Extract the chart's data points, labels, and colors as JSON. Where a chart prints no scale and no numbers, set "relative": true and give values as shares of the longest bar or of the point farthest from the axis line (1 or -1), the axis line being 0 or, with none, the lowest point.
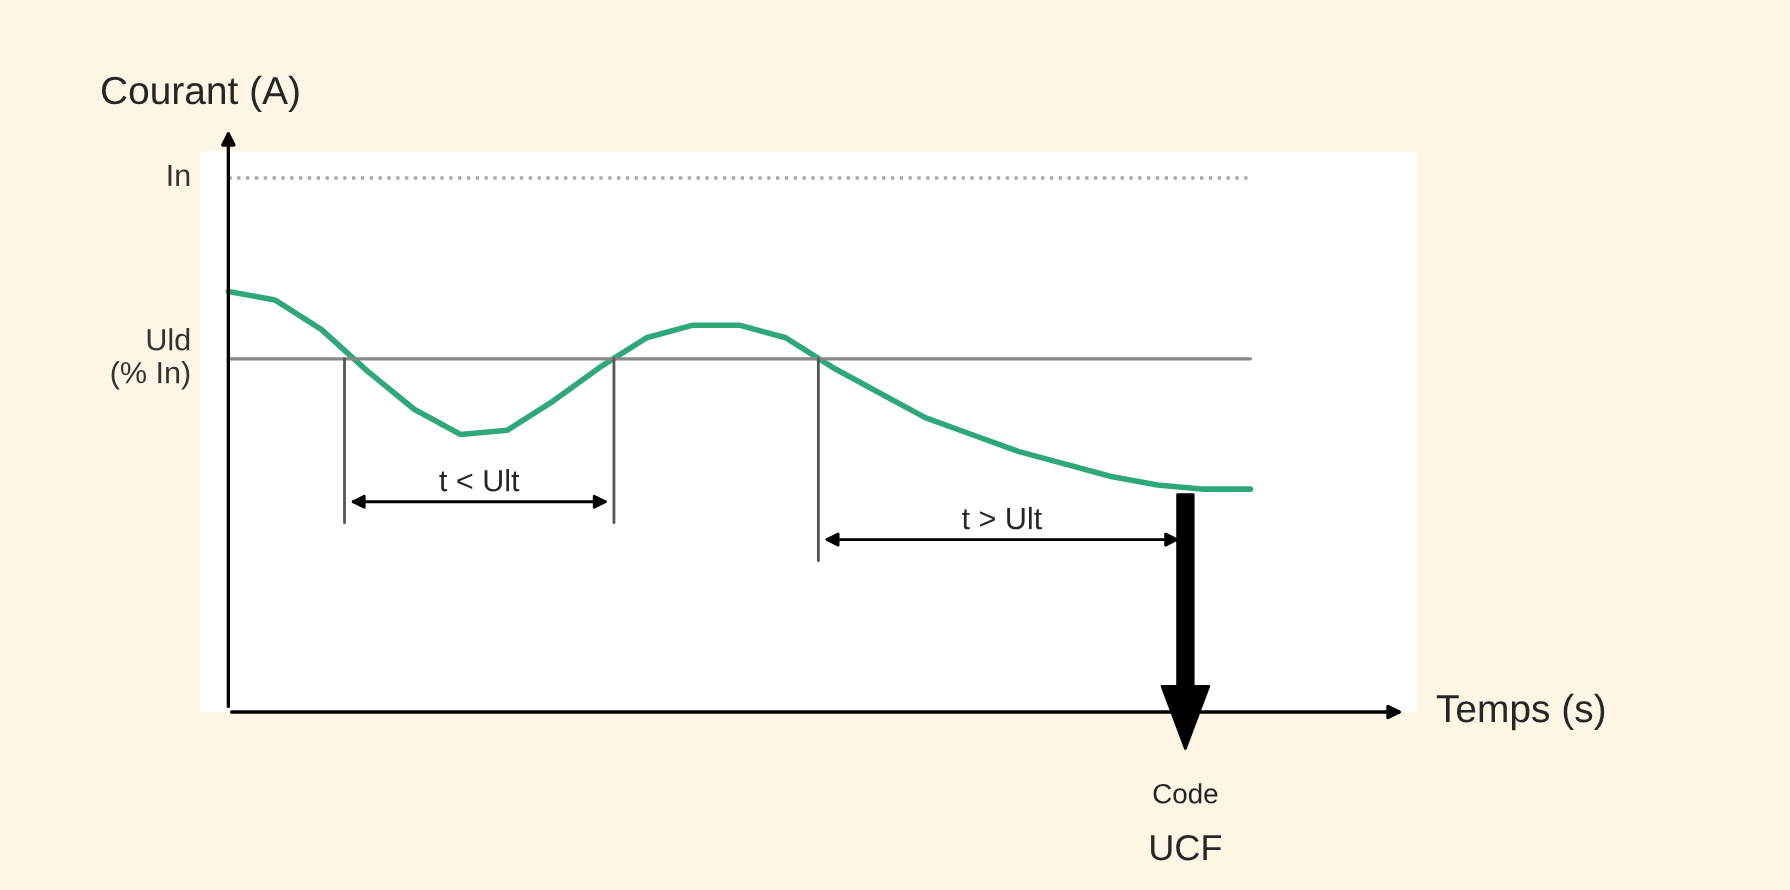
{
  "chart_data": {
    "type": "line",
    "relative": true,
    "ylabel": "Courant (A)",
    "xlabel": "Temps (s)",
    "categories": [
      null,
      null,
      null,
      null,
      null,
      null,
      null,
      null,
      null,
      null,
      null,
      null,
      null,
      null,
      null,
      null,
      null,
      null,
      null,
      null,
      null,
      null,
      null
    ],
    "series": [
      {
        "color": "#2ea878",
        "values": [
          1.0,
          0.98,
          0.91,
          0.81,
          0.72,
          0.66,
          0.67,
          0.74,
          0.82,
          0.89,
          0.92,
          0.92,
          0.89,
          0.82,
          0.76,
          0.7,
          0.66,
          0.62,
          0.59,
          0.56,
          0.54,
          0.53,
          0.53
        ]
      }
    ],
    "ref_lines": [
      {
        "axis": "y",
        "value": 1.27,
        "label": "In",
        "color": "#aaaaaa",
        "line_style": "dotted"
      },
      {
        "axis": "y",
        "value": 0.84,
        "label": "Uld\n(% In)",
        "color": "#888888",
        "line_style": "solid"
      }
    ],
    "annotations": [
      "t < Ult",
      "t > Ult",
      "Code",
      "UCF"
    ],
    "marker": "none",
    "line_style": "solid",
    "legend": false
  }
}
